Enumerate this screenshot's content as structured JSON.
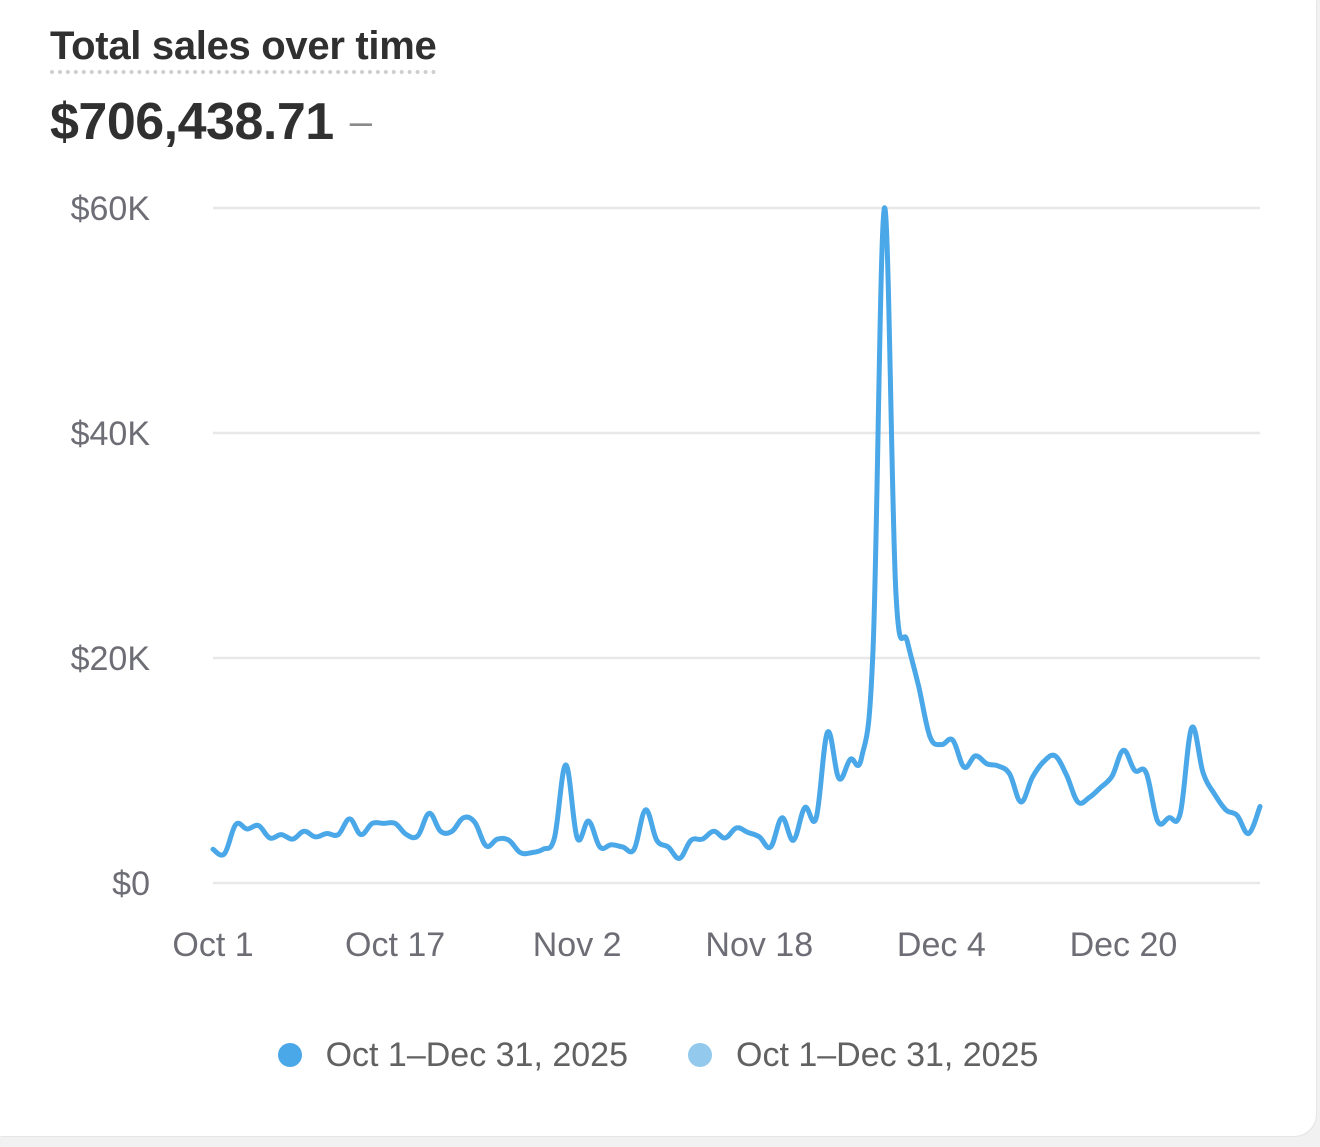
{
  "card": {
    "title": "Total sales over time",
    "total": "$706,438.71",
    "change": "–"
  },
  "colors": {
    "primary_series": "#4aa7e8",
    "comparison_series": "#93c9ec",
    "gridline": "#e8e8e8",
    "axis_text": "#6d6d75"
  },
  "chart_data": {
    "type": "line",
    "title": "Total sales over time",
    "xlabel": "",
    "ylabel": "",
    "ylim": [
      0,
      60000
    ],
    "yticks": [
      "$0",
      "$20K",
      "$40K",
      "$60K"
    ],
    "ytick_values": [
      0,
      20000,
      40000,
      60000
    ],
    "xticks": [
      "Oct 1",
      "Oct 17",
      "Nov 2",
      "Nov 18",
      "Dec 4",
      "Dec 20"
    ],
    "xtick_days": [
      0,
      16,
      32,
      48,
      64,
      80
    ],
    "grid": true,
    "legend_position": "bottom-center",
    "legend": [
      {
        "label": "Oct 1–Dec 31, 2025",
        "color": "#4aa7e8"
      },
      {
        "label": "Oct 1–Dec 31, 2025",
        "color": "#93c9ec"
      }
    ],
    "series": [
      {
        "x_start": "Oct 1",
        "x_end": "Dec 31",
        "values": [
          3000,
          2600,
          5200,
          4800,
          5100,
          4000,
          4300,
          3900,
          4600,
          4100,
          4400,
          4300,
          5700,
          4300,
          5300,
          5300,
          5300,
          4300,
          4200,
          6200,
          4600,
          4600,
          5800,
          5400,
          3300,
          3900,
          3800,
          2700,
          2700,
          3000,
          4000,
          10500,
          4000,
          5500,
          3200,
          3400,
          3200,
          3000,
          6500,
          3800,
          3200,
          2200,
          3800,
          3900,
          4600,
          4000,
          4900,
          4500,
          4100,
          3200,
          5800,
          3800,
          6700,
          5800,
          13400,
          9300,
          11000,
          11200,
          20900,
          60000,
          26000,
          21500,
          17500,
          13000,
          12300,
          12700,
          10300,
          11300,
          10600,
          10400,
          9700,
          7200,
          9400,
          10800,
          11300,
          9600,
          7200,
          7600,
          8500,
          9500,
          11800,
          10000,
          9800,
          5500,
          5800,
          6200,
          13800,
          9800,
          7900,
          6500,
          6000,
          4400,
          6800
        ]
      }
    ]
  }
}
